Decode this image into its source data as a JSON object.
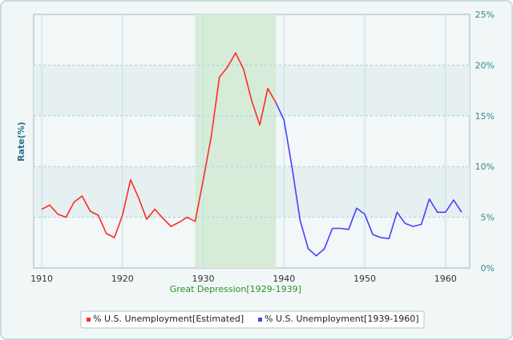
{
  "chart_data": {
    "type": "line",
    "ylabel": "Rate(%)",
    "xlim": [
      1909,
      1963
    ],
    "ylim": [
      0,
      25
    ],
    "x_ticks": [
      1910,
      1920,
      1930,
      1940,
      1950,
      1960
    ],
    "y_ticks": [
      "0%",
      "5%",
      "10%",
      "15%",
      "20%",
      "25%"
    ],
    "y_tick_values": [
      0,
      5,
      10,
      15,
      20,
      25
    ],
    "y_axis_side": "right",
    "grid": true,
    "legend_position": "bottom-center",
    "highlight_band": {
      "x_start": 1929,
      "x_end": 1939,
      "label": "Great Depression[1929-1939]",
      "color": "#d6ecd9"
    },
    "series": [
      {
        "name": "% U.S. Unemployment[Estimated]",
        "color": "#ff2a2a",
        "x": [
          1910,
          1911,
          1912,
          1913,
          1914,
          1915,
          1916,
          1917,
          1918,
          1919,
          1920,
          1921,
          1922,
          1923,
          1924,
          1925,
          1926,
          1927,
          1928,
          1929,
          1930,
          1931,
          1932,
          1933,
          1934,
          1935,
          1936,
          1937,
          1938,
          1939
        ],
        "y": [
          5.8,
          6.2,
          5.3,
          5.0,
          6.5,
          7.1,
          5.6,
          5.2,
          3.4,
          3.0,
          5.2,
          8.7,
          6.9,
          4.8,
          5.8,
          4.9,
          4.1,
          4.5,
          5.0,
          4.6,
          8.7,
          13.0,
          18.8,
          19.8,
          21.2,
          19.6,
          16.5,
          14.1,
          17.7,
          16.3
        ]
      },
      {
        "name": "% U.S. Unemployment[1939-1960]",
        "color": "#4d3dff",
        "x": [
          1939,
          1940,
          1941,
          1942,
          1943,
          1944,
          1945,
          1946,
          1947,
          1948,
          1949,
          1950,
          1951,
          1952,
          1953,
          1954,
          1955,
          1956,
          1957,
          1958,
          1959,
          1960,
          1961,
          1962
        ],
        "y": [
          16.3,
          14.6,
          9.9,
          4.7,
          1.9,
          1.2,
          1.9,
          3.9,
          3.9,
          3.8,
          5.9,
          5.3,
          3.3,
          3.0,
          2.9,
          5.5,
          4.4,
          4.1,
          4.3,
          6.8,
          5.5,
          5.5,
          6.7,
          5.5
        ]
      }
    ]
  }
}
